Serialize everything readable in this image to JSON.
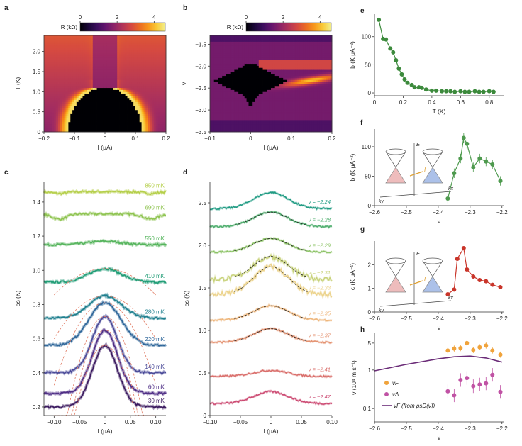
{
  "figure": {
    "panel_labels": [
      "a",
      "b",
      "c",
      "d",
      "e",
      "f",
      "g",
      "h"
    ],
    "colors": {
      "e_series": "#3c8a3c",
      "f_series": "#4e9a4e",
      "g_series": "#c9352a",
      "h_vF": "#f0a33c",
      "h_vD": "#c052a4",
      "h_line": "#6b2c78",
      "c_dashed": "#e07a62",
      "d_dashed": "#222222"
    }
  },
  "chart_data": [
    {
      "panel": "a",
      "type": "heatmap",
      "colorbar": {
        "label": "R (kΩ)",
        "ticks": [
          "0",
          "2",
          "4"
        ],
        "range": [
          0,
          4.6
        ]
      },
      "xlabel": "I (μA)",
      "ylabel": "T (K)",
      "xlim": [
        -0.2,
        0.2
      ],
      "ylim": [
        0,
        2.4
      ],
      "xticks": [
        "−0.2",
        "−0.1",
        "0",
        "0.1",
        "0.2"
      ],
      "xtick_values": [
        -0.2,
        -0.1,
        0,
        0.1,
        0.2
      ],
      "yticks": [
        "0",
        "0.5",
        "1.0",
        "1.5",
        "2.0"
      ],
      "ytick_values": [
        0,
        0.5,
        1.0,
        1.5,
        2.0
      ]
    },
    {
      "panel": "b",
      "type": "heatmap",
      "colorbar": {
        "label": "R (kΩ)",
        "ticks": [
          "0",
          "2",
          "4"
        ],
        "range": [
          0,
          4.6
        ]
      },
      "xlabel": "I (μA)",
      "ylabel": "ν",
      "xlim": [
        -0.1,
        0.2
      ],
      "ylim": [
        -3.5,
        -1.3
      ],
      "xticks": [
        "−0.1",
        "0",
        "0.1",
        "0.2"
      ],
      "xtick_values": [
        -0.1,
        0,
        0.1,
        0.2
      ],
      "yticks": [
        "−1.5",
        "−2.0",
        "−2.5",
        "−3.0",
        "−3.5"
      ],
      "ytick_values": [
        -1.5,
        -2.0,
        -2.5,
        -3.0,
        -3.5
      ]
    },
    {
      "panel": "c",
      "type": "line",
      "xlabel": "I (μA)",
      "ylabel": "ρs (K)",
      "xlim": [
        -0.12,
        0.12
      ],
      "ylim": [
        0.15,
        1.52
      ],
      "xticks": [
        "−0.10",
        "−0.05",
        "0",
        "0.05",
        "0.10"
      ],
      "xtick_values": [
        -0.1,
        -0.05,
        0,
        0.05,
        0.1
      ],
      "yticks": [
        "0.2",
        "0.4",
        "0.6",
        "0.8",
        "1.0",
        "1.2",
        "1.4"
      ],
      "ytick_values": [
        0.2,
        0.4,
        0.6,
        0.8,
        1.0,
        1.2,
        1.4
      ],
      "series": [
        {
          "name": "850 mK",
          "color": "#b5cf4a",
          "base": 1.46,
          "peak": 0.0,
          "wing": 0.01
        },
        {
          "name": "690 mK",
          "color": "#8fc451",
          "base": 1.33,
          "peak": 0.0,
          "wing": 0.03
        },
        {
          "name": "550 mK",
          "color": "#55b45c",
          "base": 1.15,
          "peak": 0.02,
          "wing": 0.0
        },
        {
          "name": "410 mK",
          "color": "#1f9c75",
          "base": 0.93,
          "peak": 0.08,
          "wing": 0.0
        },
        {
          "name": "280 mK",
          "color": "#1e7f8e",
          "base": 0.72,
          "peak": 0.13,
          "wing": 0.0
        },
        {
          "name": "220 mK",
          "color": "#2d6599",
          "base": 0.56,
          "peak": 0.25,
          "wing": 0.0
        },
        {
          "name": "140 mK",
          "color": "#4a4a98",
          "base": 0.4,
          "peak": 0.33,
          "wing": 0.0
        },
        {
          "name": "60 mK",
          "color": "#4e2d85",
          "base": 0.28,
          "peak": 0.37,
          "wing": 0.0
        },
        {
          "name": "30 mK",
          "color": "#3b1a60",
          "base": 0.2,
          "peak": 0.36,
          "wing": 0.0
        }
      ]
    },
    {
      "panel": "d",
      "type": "line",
      "xlabel": "I (μA)",
      "ylabel": "ρs (K)",
      "xlim": [
        -0.1,
        0.1
      ],
      "ylim": [
        0,
        2.75
      ],
      "xticks": [
        "−0.10",
        "−0.05",
        "0",
        "0.05",
        "0.10"
      ],
      "xtick_values": [
        -0.1,
        -0.05,
        0,
        0.05,
        0.1
      ],
      "yticks": [
        "0",
        "0.5",
        "1.0",
        "1.5",
        "2.0",
        "2.5"
      ],
      "ytick_values": [
        0,
        0.5,
        1.0,
        1.5,
        2.0,
        2.5
      ],
      "series": [
        {
          "name": "ν = −2.24",
          "color": "#1e9a82",
          "base": 2.43,
          "peak": 0.19
        },
        {
          "name": "ν = −2.28",
          "color": "#4fae6e",
          "base": 2.22,
          "peak": 0.17
        },
        {
          "name": "ν = −2.29",
          "color": "#8cc366",
          "base": 1.92,
          "peak": 0.16
        },
        {
          "name": "ν = −2.31",
          "color": "#c8d27a",
          "base": 1.6,
          "peak": 0.27
        },
        {
          "name": "ν = −2.33",
          "color": "#ecd38c",
          "base": 1.42,
          "peak": 0.33
        },
        {
          "name": "ν = −2.35",
          "color": "#eeb67c",
          "base": 1.12,
          "peak": 0.17
        },
        {
          "name": "ν = −2.37",
          "color": "#e49270",
          "base": 0.86,
          "peak": 0.16
        },
        {
          "name": "ν = −2.41",
          "color": "#d96d6a",
          "base": 0.46,
          "peak": 0.07
        },
        {
          "name": "ν = −2.47",
          "color": "#cc4a72",
          "base": 0.14,
          "peak": 0.14
        }
      ]
    },
    {
      "panel": "e",
      "type": "scatter",
      "xlabel": "T (K)",
      "ylabel": "b (K μA⁻²)",
      "xlim": [
        0,
        0.9
      ],
      "ylim": [
        -5,
        140
      ],
      "xticks": [
        "0",
        "0.2",
        "0.4",
        "0.6",
        "0.8"
      ],
      "xtick_values": [
        0,
        0.2,
        0.4,
        0.6,
        0.8
      ],
      "yticks": [
        "0",
        "50",
        "100"
      ],
      "ytick_values": [
        0,
        50,
        100
      ],
      "x": [
        0.03,
        0.06,
        0.08,
        0.11,
        0.13,
        0.15,
        0.17,
        0.19,
        0.21,
        0.23,
        0.26,
        0.28,
        0.31,
        0.33,
        0.36,
        0.4,
        0.43,
        0.47,
        0.5,
        0.53,
        0.56,
        0.6,
        0.63,
        0.66,
        0.7,
        0.73,
        0.76,
        0.8,
        0.83
      ],
      "y": [
        130,
        96,
        95,
        79,
        72,
        58,
        43,
        33,
        24,
        18,
        14,
        10,
        10,
        9,
        6,
        4,
        4,
        3,
        3,
        3,
        2,
        3,
        2,
        2,
        3,
        2,
        2,
        3,
        2
      ]
    },
    {
      "panel": "f",
      "type": "line",
      "xlabel": "ν",
      "ylabel": "b (K μA⁻²)",
      "xlim": [
        -2.6,
        -2.195
      ],
      "ylim": [
        0,
        130
      ],
      "xticks": [
        "−2.6",
        "−2.5",
        "−2.4",
        "−2.3",
        "−2.2"
      ],
      "xtick_values": [
        -2.6,
        -2.5,
        -2.4,
        -2.3,
        -2.2
      ],
      "yticks": [
        "0",
        "50",
        "100"
      ],
      "ytick_values": [
        0,
        50,
        100
      ],
      "x": [
        -2.37,
        -2.35,
        -2.33,
        -2.32,
        -2.31,
        -2.29,
        -2.27,
        -2.25,
        -2.23,
        -2.205
      ],
      "y": [
        12,
        55,
        80,
        115,
        105,
        65,
        80,
        75,
        70,
        42
      ],
      "inset_labels": [
        "E",
        "I",
        "kx",
        "ky"
      ]
    },
    {
      "panel": "g",
      "type": "line",
      "xlabel": "ν",
      "ylabel": "c (K μA⁻¹)",
      "xlim": [
        -2.6,
        -2.195
      ],
      "ylim": [
        0,
        3.0
      ],
      "xticks": [
        "−2.6",
        "−2.5",
        "−2.4",
        "−2.3",
        "−2.2"
      ],
      "xtick_values": [
        -2.6,
        -2.5,
        -2.4,
        -2.3,
        -2.2
      ],
      "yticks": [
        "0",
        "1",
        "2"
      ],
      "ytick_values": [
        0,
        1,
        2
      ],
      "x": [
        -2.37,
        -2.35,
        -2.34,
        -2.32,
        -2.31,
        -2.29,
        -2.27,
        -2.25,
        -2.23,
        -2.205
      ],
      "y": [
        0.75,
        0.95,
        2.25,
        2.7,
        1.8,
        1.5,
        1.35,
        1.3,
        1.15,
        1.05
      ],
      "inset_labels": [
        "E",
        "I",
        "kx",
        "ky"
      ]
    },
    {
      "panel": "h",
      "type": "scatter",
      "xlabel": "ν",
      "ylabel": "v (10⁴ m s⁻¹)",
      "xlim": [
        -2.6,
        -2.195
      ],
      "ylim_log": [
        0.045,
        9
      ],
      "xticks": [
        "−2.6",
        "−2.5",
        "−2.4",
        "−2.3",
        "−2.2"
      ],
      "xtick_values": [
        -2.6,
        -2.5,
        -2.4,
        -2.3,
        -2.2
      ],
      "yticks": [
        "0.1",
        "1",
        "5"
      ],
      "ytick_values": [
        0.1,
        1,
        5
      ],
      "legend": [
        "vF",
        "vΔ",
        "vF (from ρsD(ν))"
      ],
      "vF": {
        "x": [
          -2.37,
          -2.35,
          -2.33,
          -2.31,
          -2.29,
          -2.27,
          -2.25,
          -2.23,
          -2.205
        ],
        "y": [
          3.2,
          3.6,
          3.7,
          5.0,
          3.3,
          3.9,
          4.3,
          3.2,
          2.5
        ]
      },
      "vD": {
        "x": [
          -2.37,
          -2.35,
          -2.33,
          -2.31,
          -2.29,
          -2.27,
          -2.25,
          -2.23,
          -2.205
        ],
        "y": [
          0.28,
          0.22,
          0.55,
          0.62,
          0.38,
          0.42,
          0.45,
          0.75,
          0.27
        ]
      },
      "curve": {
        "x": [
          -2.6,
          -2.55,
          -2.5,
          -2.45,
          -2.4,
          -2.35,
          -2.3,
          -2.25,
          -2.2
        ],
        "y": [
          0.95,
          1.15,
          1.4,
          1.65,
          1.95,
          2.2,
          2.3,
          2.05,
          1.6
        ]
      }
    }
  ]
}
